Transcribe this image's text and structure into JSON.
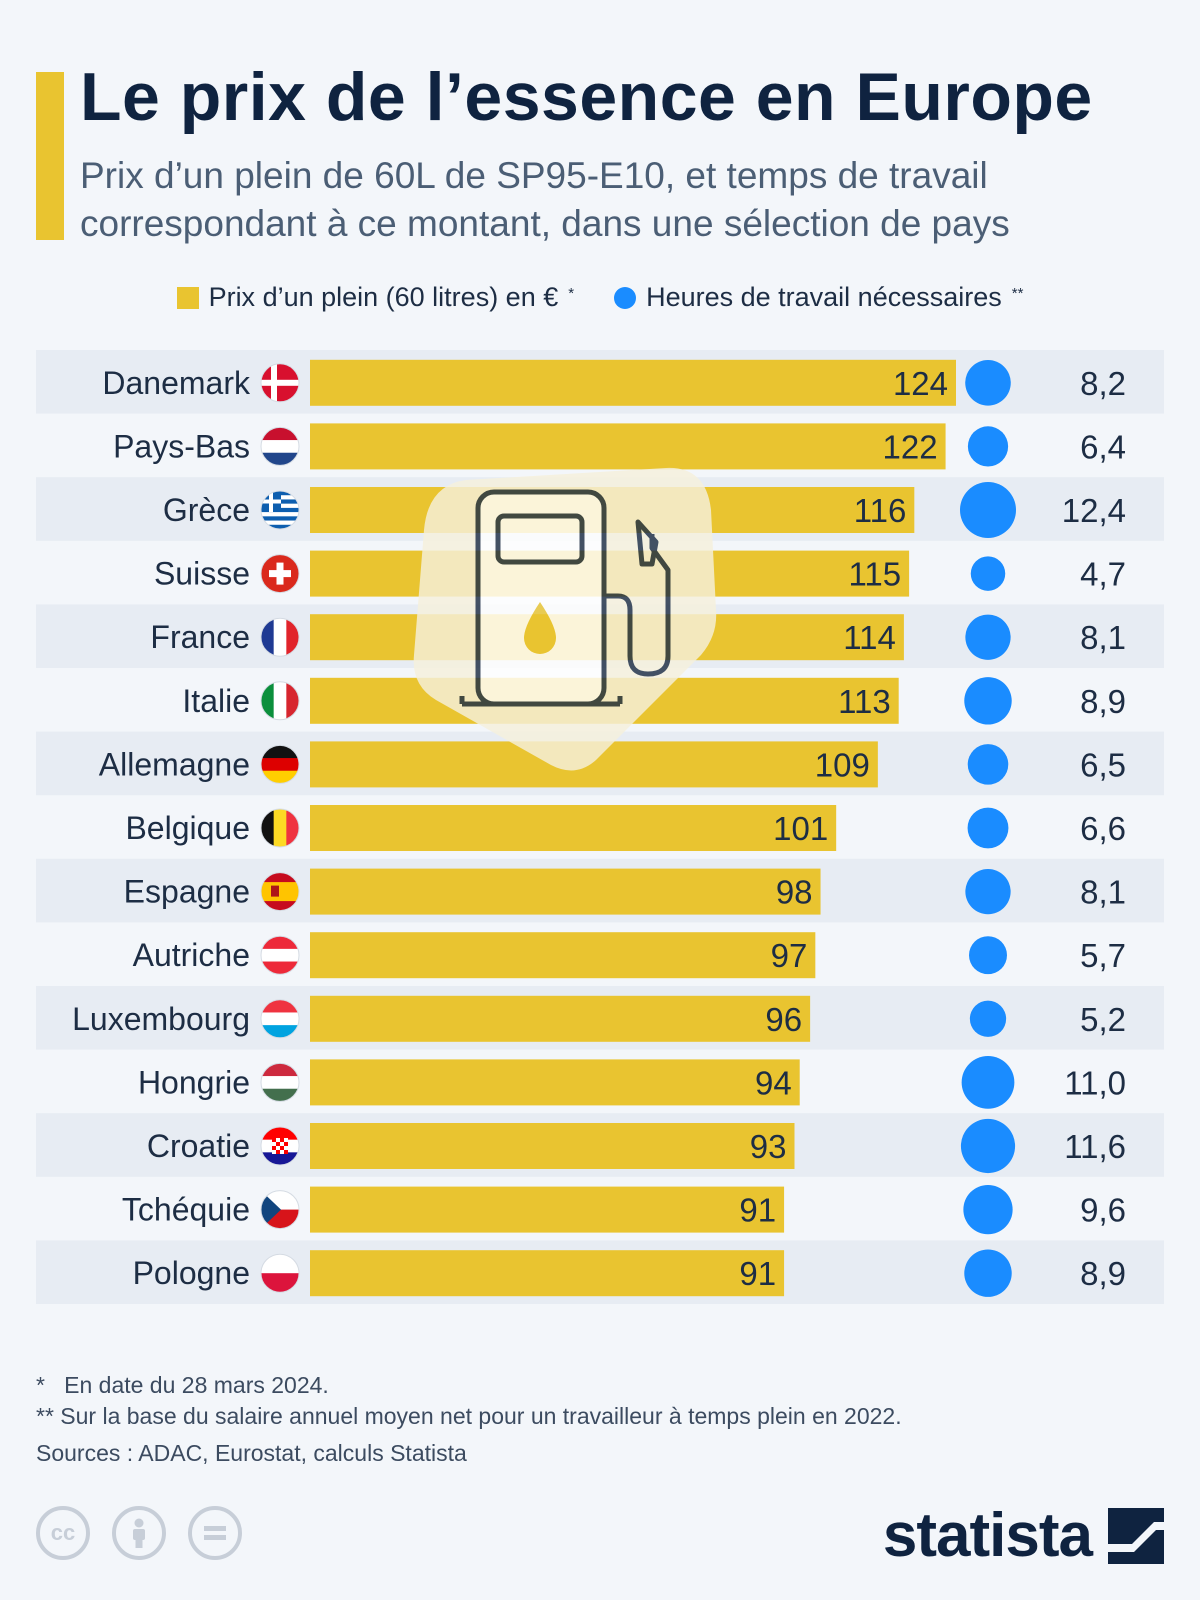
{
  "header": {
    "title": "Le prix de l’essence en Europe",
    "subtitle": "Prix d’un plein de 60L de SP95-E10, et temps de travail correspondant à ce montant, dans une sélection de pays"
  },
  "legend": {
    "price_label": "Prix d’un plein (60 litres) en €",
    "price_mark": "*",
    "hours_label": "Heures de travail nécessaires",
    "hours_mark": "**"
  },
  "colors": {
    "bar": "#e9c430",
    "bubble": "#1a8cff",
    "row_stripe": "#e7ecf3",
    "text": "#1d2d44"
  },
  "chart_data": {
    "type": "bar",
    "orientation": "horizontal",
    "categories": [
      "Danemark",
      "Pays-Bas",
      "Grèce",
      "Suisse",
      "France",
      "Italie",
      "Allemagne",
      "Belgique",
      "Espagne",
      "Autriche",
      "Luxembourg",
      "Hongrie",
      "Croatie",
      "Tchéquie",
      "Pologne"
    ],
    "series": [
      {
        "name": "Prix d’un plein (60 litres) en €",
        "values": [
          124,
          122,
          116,
          115,
          114,
          113,
          109,
          101,
          98,
          97,
          96,
          94,
          93,
          91,
          91
        ]
      },
      {
        "name": "Heures de travail nécessaires",
        "values": [
          8.2,
          6.4,
          12.4,
          4.7,
          8.1,
          8.9,
          6.5,
          6.6,
          8.1,
          5.7,
          5.2,
          11.0,
          11.6,
          9.6,
          8.9
        ],
        "labels": [
          "8,2",
          "6,4",
          "12,4",
          "4,7",
          "8,1",
          "8,9",
          "6,5",
          "6,6",
          "8,1",
          "5,7",
          "5,2",
          "11,0",
          "11,6",
          "9,6",
          "8,9"
        ]
      }
    ],
    "flags": [
      "denmark",
      "netherlands",
      "greece",
      "switzerland",
      "france",
      "italy",
      "germany",
      "belgium",
      "spain",
      "austria",
      "luxembourg",
      "hungary",
      "croatia",
      "czechia",
      "poland"
    ],
    "xlim": [
      0,
      124
    ],
    "grid": false,
    "legend_position": "top"
  },
  "icons": {
    "watermark": "fuel-pump-icon",
    "license": [
      "creative-commons-icon",
      "attribution-icon",
      "no-derivatives-icon"
    ]
  },
  "notes": {
    "note1_mark": "*",
    "note1": "En date du 28 mars 2024.",
    "note2_mark": "**",
    "note2": "Sur la base du salaire annuel moyen net pour un travailleur à temps plein en 2022.",
    "sources": "Sources : ADAC, Eurostat, calculs Statista"
  },
  "brand": {
    "logo_text": "statista",
    "cc_label": "cc"
  }
}
